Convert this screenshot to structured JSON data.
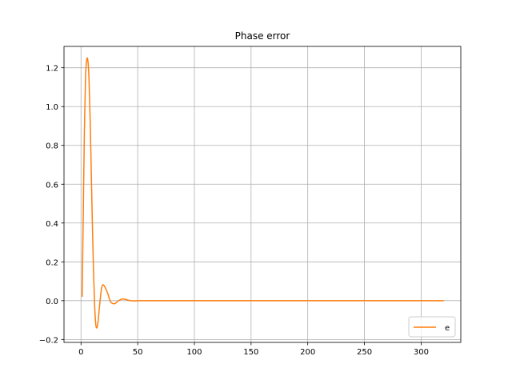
{
  "chart_data": {
    "type": "line",
    "title": "Phase error",
    "xlabel": "",
    "ylabel": "",
    "xlim": [
      -15,
      335
    ],
    "ylim": [
      -0.215,
      1.31
    ],
    "x_ticks": [
      0,
      50,
      100,
      150,
      200,
      250,
      300
    ],
    "y_ticks": [
      -0.2,
      0.0,
      0.2,
      0.4,
      0.6,
      0.8,
      1.0,
      1.2
    ],
    "x_tick_labels": [
      "0",
      "50",
      "100",
      "150",
      "200",
      "250",
      "300"
    ],
    "y_tick_labels": [
      "−0.2",
      "0.0",
      "0.2",
      "0.4",
      "0.6",
      "0.8",
      "1.0",
      "1.2"
    ],
    "grid": true,
    "legend_position": "lower-right",
    "series": [
      {
        "name": "e",
        "color": "#ff7f0e",
        "x": [
          1,
          2,
          3,
          4,
          5,
          6,
          7,
          8,
          9,
          10,
          11,
          12,
          13,
          14,
          15,
          16,
          17,
          18,
          19,
          20,
          22,
          24,
          25,
          26,
          28,
          30,
          32,
          34,
          36,
          38,
          40,
          42,
          44,
          46,
          48,
          50,
          55,
          60,
          70,
          80,
          100,
          150,
          200,
          250,
          300,
          320
        ],
        "y": [
          0.02,
          0.45,
          0.88,
          1.15,
          1.24,
          1.24,
          1.15,
          0.95,
          0.68,
          0.4,
          0.16,
          -0.02,
          -0.12,
          -0.14,
          -0.11,
          -0.05,
          0.01,
          0.06,
          0.08,
          0.08,
          0.06,
          0.03,
          0.01,
          -0.005,
          -0.015,
          -0.015,
          -0.005,
          0.003,
          0.008,
          0.008,
          0.005,
          0.002,
          0.0,
          -0.001,
          -0.001,
          0.0,
          0.0,
          0.0,
          0.0,
          0.0,
          0.0,
          0.0,
          0.0,
          0.0,
          0.0,
          0.0
        ]
      }
    ]
  }
}
